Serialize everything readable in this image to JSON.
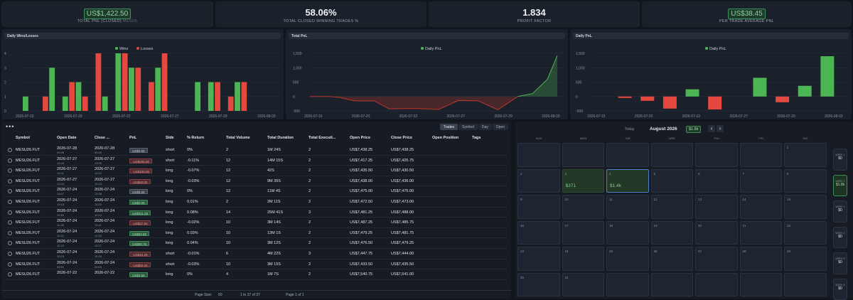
{
  "kpis": [
    {
      "value": "US$1,422.50",
      "label": "TOTAL PNL (CLOSED)",
      "sub": "MESU5",
      "boxed": true
    },
    {
      "value": "58.06%",
      "label": "TOTAL CLOSED WINNING TRADES %",
      "boxed": false
    },
    {
      "value": "1.834",
      "label": "PROFIT FACTOR",
      "boxed": false
    },
    {
      "value": "US$38.45",
      "label": "PER TRADE AVERAGE PNL",
      "boxed": true
    }
  ],
  "panels": {
    "wins_losses": "Daily Wins/Losses",
    "total_pnl": "Total PnL",
    "daily_pnl": "Daily PnL"
  },
  "chart_data": [
    {
      "type": "bar",
      "title": "Daily Wins/Losses",
      "x_ticks": [
        "2026-07-15",
        "2026-07-20",
        "2026-07-22",
        "2026-07-27",
        "2026-07-29",
        "2026-08-03"
      ],
      "ylim": [
        0,
        4
      ],
      "y_ticks": [
        0,
        1,
        2,
        3,
        4
      ],
      "legend": "top-center",
      "series": [
        {
          "name": "Wins",
          "color": "#4cb654",
          "values": [
            1,
            0,
            3,
            1,
            2,
            0,
            1,
            4,
            3,
            0,
            3,
            0,
            0,
            2,
            2,
            0,
            2,
            0,
            0
          ]
        },
        {
          "name": "Losses",
          "color": "#e5483f",
          "values": [
            0,
            1,
            0,
            2,
            1,
            4,
            0,
            4,
            3,
            2,
            4,
            0,
            0,
            0,
            2,
            1,
            2,
            0,
            0
          ]
        }
      ]
    },
    {
      "type": "area",
      "title": "Total PnL",
      "x_ticks": [
        "2026-07-15",
        "2026-07-20",
        "2026-07-22",
        "2026-07-27",
        "2026-07-29",
        "2026-08-03"
      ],
      "ylim": [
        -500,
        1500
      ],
      "y_ticks": [
        -500,
        0,
        500,
        1000,
        1500
      ],
      "legend": "top-center",
      "series": [
        {
          "name": "Daily PnL",
          "color": "#4cb654",
          "neg_color": "#c0392b",
          "x": [
            0,
            8,
            12,
            18,
            26,
            32,
            38,
            44,
            52,
            60,
            68,
            76,
            84,
            90,
            96,
            100
          ],
          "values": [
            0,
            0,
            -30,
            -150,
            -150,
            -430,
            -420,
            -420,
            -450,
            -140,
            -150,
            -460,
            0,
            100,
            600,
            1420
          ]
        }
      ]
    },
    {
      "type": "bar",
      "title": "Daily PnL",
      "x_ticks": [
        "2026-07-15",
        "2026-07-20",
        "2026-07-22",
        "2026-07-27",
        "2026-07-29",
        "2026-08-03"
      ],
      "ylim": [
        -500,
        1500
      ],
      "y_ticks": [
        -500,
        0,
        500,
        1000,
        1500
      ],
      "legend": "top-center",
      "series": [
        {
          "name": "Daily PnL",
          "values": [
            0,
            -50,
            -150,
            -420,
            250,
            -450,
            0,
            650,
            -200,
            371,
            1400
          ]
        }
      ]
    }
  ],
  "table": {
    "tabs": [
      "Trades",
      "Symbol",
      "Day",
      "Open"
    ],
    "columns": [
      "Symbol",
      "Open Date",
      "Close ...",
      "PnL",
      "Side",
      "% Return",
      "Total Volume",
      "Total Duration",
      "Total Executi...",
      "Open Price",
      "Close Price",
      "Open Position",
      "Tags"
    ],
    "rows": [
      {
        "sym": "MESU26.FUT",
        "od": "2026-07-28",
        "ot": "09:39",
        "cd": "2026-07-28",
        "ct": "09:40",
        "pnl": "US$0.00",
        "cls": "zero",
        "side": "short",
        "ret": "0%",
        "vol": "2",
        "dur": "1M 24S",
        "ex": "2",
        "op": "US$7,438.25",
        "cp": "US$7,438.25"
      },
      {
        "sym": "MESU26.FUT",
        "od": "2026-07-27",
        "ot": "13:18",
        "cd": "2026-07-27",
        "ct": "13:33",
        "pnl": "-US$255.00",
        "cls": "neg",
        "side": "short",
        "ret": "-0.11%",
        "vol": "12",
        "dur": "14M 15S",
        "ex": "2",
        "op": "US$7,417.25",
        "cp": "US$7,425.75"
      },
      {
        "sym": "MESU26.FUT",
        "od": "2026-07-27",
        "ot": "12:21",
        "cd": "2026-07-27",
        "ct": "12:22",
        "pnl": "-US$150.00",
        "cls": "neg",
        "side": "long",
        "ret": "-0.07%",
        "vol": "12",
        "dur": "42S",
        "ex": "2",
        "op": "US$7,435.50",
        "cp": "US$7,430.50"
      },
      {
        "sym": "MESU26.FUT",
        "od": "2026-07-27",
        "ot": "12:04",
        "cd": "2026-07-27",
        "ct": "12:13",
        "pnl": "-US$60.00",
        "cls": "neg",
        "side": "long",
        "ret": "-0.03%",
        "vol": "12",
        "dur": "9M 35S",
        "ex": "2",
        "op": "US$7,438.00",
        "cp": "US$7,436.00"
      },
      {
        "sym": "MESU26.FUT",
        "od": "2026-07-24",
        "ot": "13:27",
        "cd": "2026-07-24",
        "ct": "13:38",
        "pnl": "US$0.00",
        "cls": "zero",
        "side": "long",
        "ret": "0%",
        "vol": "12",
        "dur": "11M 4S",
        "ex": "2",
        "op": "US$7,475.00",
        "cp": "US$7,475.00"
      },
      {
        "sym": "MESU26.FUT",
        "od": "2026-07-24",
        "ot": "13:18",
        "cd": "2026-07-24",
        "ct": "13:20",
        "pnl": "US$2.00",
        "cls": "pos",
        "side": "long",
        "ret": "0.01%",
        "vol": "2",
        "dur": "2M 11S",
        "ex": "2",
        "op": "US$7,472.50",
        "cp": "US$7,473.00"
      },
      {
        "sym": "MESU26.FUT",
        "od": "2026-07-24",
        "ot": "11:48",
        "cd": "2026-07-24",
        "ct": "12:14",
        "pnl": "US$211.25",
        "cls": "pos",
        "side": "long",
        "ret": "0.08%",
        "vol": "14",
        "dur": "25M 41S",
        "ex": "3",
        "op": "US$7,481.25",
        "cp": "US$7,488.00"
      },
      {
        "sym": "MESU26.FUT",
        "od": "2026-07-24",
        "ot": "11:38",
        "cd": "2026-07-24",
        "ct": "11:41",
        "pnl": "-US$37.50",
        "cls": "neg",
        "side": "long",
        "ret": "-0.02%",
        "vol": "10",
        "dur": "3M 14S",
        "ex": "2",
        "op": "US$7,487.25",
        "cp": "US$7,485.75"
      },
      {
        "sym": "MESU26.FUT",
        "od": "2026-07-24",
        "ot": "11:20",
        "cd": "2026-07-24",
        "ct": "11:33",
        "pnl": "US$62.50",
        "cls": "pos",
        "side": "long",
        "ret": "0.03%",
        "vol": "10",
        "dur": "13M 1S",
        "ex": "2",
        "op": "US$7,479.25",
        "cp": "US$7,481.75"
      },
      {
        "sym": "MESU26.FUT",
        "od": "2026-07-24",
        "ot": "11:14",
        "cd": "2026-07-24",
        "ct": "11:17",
        "pnl": "US$68.75",
        "cls": "pos",
        "side": "long",
        "ret": "0.04%",
        "vol": "10",
        "dur": "3M 12S",
        "ex": "2",
        "op": "US$7,476.50",
        "cp": "US$7,479.25"
      },
      {
        "sym": "MESU26.FUT",
        "od": "2026-07-24",
        "ot": "10:15",
        "cd": "2026-07-24",
        "ct": "10:20",
        "pnl": "-US$16.25",
        "cls": "neg",
        "side": "short",
        "ret": "-0.01%",
        "vol": "6",
        "dur": "4M 22S",
        "ex": "3",
        "op": "US$7,447.75",
        "cp": "US$7,444.00"
      },
      {
        "sym": "MESU26.FUT",
        "od": "2026-07-24",
        "ot": "09:51",
        "cd": "2026-07-24",
        "ct": "09:55",
        "pnl": "-US$50.00",
        "cls": "neg",
        "side": "short",
        "ret": "-0.03%",
        "vol": "10",
        "dur": "3M 15S",
        "ex": "2",
        "op": "US$7,433.50",
        "cp": "US$7,435.50"
      },
      {
        "sym": "MESU26.FUT",
        "od": "2026-07-22",
        "ot": "",
        "cd": "2026-07-22",
        "ct": "",
        "pnl": "US$2.50",
        "cls": "pos",
        "side": "long",
        "ret": "0%",
        "vol": "4",
        "dur": "1M 7S",
        "ex": "2",
        "op": "US$7,540.75",
        "cp": "US$7,541.00"
      }
    ],
    "footer": {
      "page_size_label": "Page Size:",
      "page_size": "50",
      "range": "1 to 37 of 37",
      "page": "Page 1 of 1"
    }
  },
  "calendar": {
    "today": "Today",
    "month": "August 2026",
    "month_total": "$1.8k",
    "prev": "‹",
    "next": "›",
    "days": [
      "SUN",
      "MON",
      "TUE",
      "WED",
      "THU",
      "FRI",
      "SAT"
    ],
    "cells": [
      [
        "",
        "",
        "",
        "",
        "",
        "",
        "1"
      ],
      [
        "2",
        "3",
        "4",
        "5",
        "6",
        "7",
        "8"
      ],
      [
        "9",
        "10",
        "11",
        "12",
        "13",
        "14",
        "15"
      ],
      [
        "16",
        "17",
        "18",
        "19",
        "20",
        "21",
        "22"
      ],
      [
        "23",
        "24",
        "25",
        "26",
        "27",
        "28",
        "29"
      ],
      [
        "30",
        "31",
        "",
        "",
        "",
        "",
        ""
      ]
    ],
    "values": {
      "3": "$371",
      "4": "$1.4k"
    },
    "weeks": [
      {
        "label": "WEEK 1",
        "value": "$0"
      },
      {
        "label": "WEEK 2",
        "value": "$1.8k"
      },
      {
        "label": "WEEK 3",
        "value": "$0"
      },
      {
        "label": "WEEK 4",
        "value": "$0"
      },
      {
        "label": "WEEK 5",
        "value": "$0"
      },
      {
        "label": "WEEK 6",
        "value": "$0"
      }
    ]
  }
}
